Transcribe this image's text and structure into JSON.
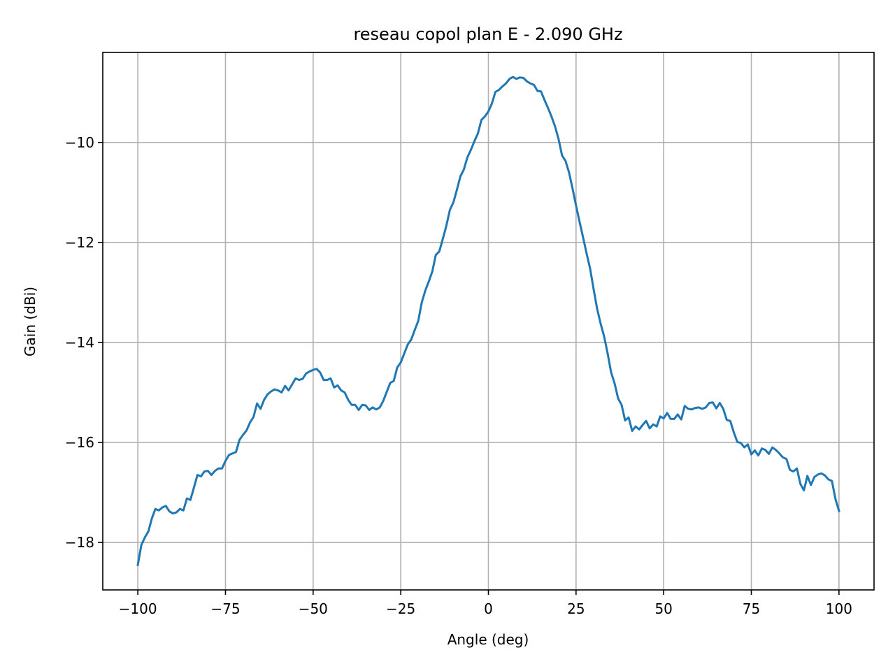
{
  "chart_data": {
    "type": "line",
    "title": "reseau copol plan E - 2.090 GHz",
    "xlabel": "Angle (deg)",
    "ylabel": "Gain (dBi)",
    "xlim": [
      -110,
      110
    ],
    "ylim": [
      -18.95,
      -8.2
    ],
    "xticks": [
      -100,
      -75,
      -50,
      -25,
      0,
      25,
      50,
      75,
      100
    ],
    "xtick_labels": [
      "−100",
      "−75",
      "−50",
      "−25",
      "0",
      "25",
      "50",
      "75",
      "100"
    ],
    "yticks": [
      -18,
      -16,
      -14,
      -12,
      -10
    ],
    "ytick_labels": [
      "−18",
      "−16",
      "−14",
      "−12",
      "−10"
    ],
    "grid": true,
    "color": "#1f77b4",
    "series": [
      {
        "x": [
          -100,
          -99,
          -98,
          -97,
          -96,
          -95,
          -94,
          -93,
          -92,
          -91,
          -90,
          -89,
          -88,
          -87,
          -86,
          -85,
          -84,
          -83,
          -82,
          -81,
          -80,
          -79,
          -78,
          -77,
          -76,
          -75,
          -74,
          -73,
          -72,
          -71,
          -70,
          -69,
          -68,
          -67,
          -66,
          -65,
          -64,
          -63,
          -62,
          -61,
          -60,
          -59,
          -58,
          -57,
          -56,
          -55,
          -54,
          -53,
          -52,
          -51,
          -50,
          -49,
          -48,
          -47,
          -46,
          -45,
          -44,
          -43,
          -42,
          -41,
          -40,
          -39,
          -38,
          -37,
          -36,
          -35,
          -34,
          -33,
          -32,
          -31,
          -30,
          -29,
          -28,
          -27,
          -26,
          -25,
          -24,
          -23,
          -22,
          -21,
          -20,
          -19,
          -18,
          -17,
          -16,
          -15,
          -14,
          -13,
          -12,
          -11,
          -10,
          -9,
          -8,
          -7,
          -6,
          -5,
          -4,
          -3,
          -2,
          -1,
          0,
          1,
          2,
          3,
          4,
          5,
          6,
          7,
          8,
          9,
          10,
          11,
          12,
          13,
          14,
          15,
          16,
          17,
          18,
          19,
          20,
          21,
          22,
          23,
          24,
          25,
          26,
          27,
          28,
          29,
          30,
          31,
          32,
          33,
          34,
          35,
          36,
          37,
          38,
          39,
          40,
          41,
          42,
          43,
          44,
          45,
          46,
          47,
          48,
          49,
          50,
          51,
          52,
          53,
          54,
          55,
          56,
          57,
          58,
          59,
          60,
          61,
          62,
          63,
          64,
          65,
          66,
          67,
          68,
          69,
          70,
          71,
          72,
          73,
          74,
          75,
          76,
          77,
          78,
          79,
          80,
          81,
          82,
          83,
          84,
          85,
          86,
          87,
          88,
          89,
          90,
          91,
          92,
          93,
          94,
          95,
          96,
          97,
          98,
          99,
          100
        ],
        "y": [
          -18.45,
          -18.05,
          -17.9,
          -17.78,
          -17.52,
          -17.33,
          -17.36,
          -17.3,
          -17.27,
          -17.38,
          -17.42,
          -17.4,
          -17.33,
          -17.36,
          -17.12,
          -17.15,
          -16.9,
          -16.65,
          -16.68,
          -16.58,
          -16.57,
          -16.65,
          -16.57,
          -16.52,
          -16.52,
          -16.37,
          -16.25,
          -16.22,
          -16.19,
          -15.95,
          -15.85,
          -15.76,
          -15.6,
          -15.49,
          -15.22,
          -15.33,
          -15.15,
          -15.04,
          -14.98,
          -14.94,
          -14.96,
          -15.0,
          -14.87,
          -14.96,
          -14.84,
          -14.72,
          -14.75,
          -14.73,
          -14.62,
          -14.58,
          -14.55,
          -14.53,
          -14.6,
          -14.75,
          -14.75,
          -14.72,
          -14.9,
          -14.86,
          -14.96,
          -15.0,
          -15.15,
          -15.25,
          -15.25,
          -15.35,
          -15.25,
          -15.26,
          -15.35,
          -15.3,
          -15.34,
          -15.3,
          -15.17,
          -14.99,
          -14.81,
          -14.77,
          -14.5,
          -14.4,
          -14.22,
          -14.04,
          -13.94,
          -13.75,
          -13.57,
          -13.2,
          -12.96,
          -12.78,
          -12.58,
          -12.25,
          -12.18,
          -11.93,
          -11.67,
          -11.35,
          -11.2,
          -10.95,
          -10.68,
          -10.54,
          -10.3,
          -10.15,
          -9.98,
          -9.82,
          -9.55,
          -9.48,
          -9.38,
          -9.22,
          -8.99,
          -8.95,
          -8.88,
          -8.82,
          -8.73,
          -8.69,
          -8.73,
          -8.7,
          -8.71,
          -8.78,
          -8.82,
          -8.85,
          -8.97,
          -8.98,
          -9.15,
          -9.31,
          -9.48,
          -9.68,
          -9.93,
          -10.26,
          -10.37,
          -10.6,
          -10.92,
          -11.26,
          -11.59,
          -11.9,
          -12.22,
          -12.52,
          -12.93,
          -13.32,
          -13.62,
          -13.88,
          -14.22,
          -14.6,
          -14.82,
          -15.12,
          -15.25,
          -15.56,
          -15.5,
          -15.77,
          -15.68,
          -15.74,
          -15.65,
          -15.57,
          -15.72,
          -15.64,
          -15.68,
          -15.48,
          -15.52,
          -15.41,
          -15.53,
          -15.53,
          -15.44,
          -15.54,
          -15.27,
          -15.33,
          -15.34,
          -15.31,
          -15.3,
          -15.33,
          -15.3,
          -15.21,
          -15.2,
          -15.32,
          -15.21,
          -15.33,
          -15.55,
          -15.57,
          -15.8,
          -15.99,
          -16.01,
          -16.1,
          -16.04,
          -16.24,
          -16.16,
          -16.26,
          -16.12,
          -16.15,
          -16.23,
          -16.1,
          -16.15,
          -16.22,
          -16.3,
          -16.33,
          -16.55,
          -16.58,
          -16.52,
          -16.83,
          -16.96,
          -16.67,
          -16.85,
          -16.69,
          -16.64,
          -16.62,
          -16.66,
          -16.74,
          -16.77,
          -17.13,
          -17.37
        ]
      }
    ]
  }
}
